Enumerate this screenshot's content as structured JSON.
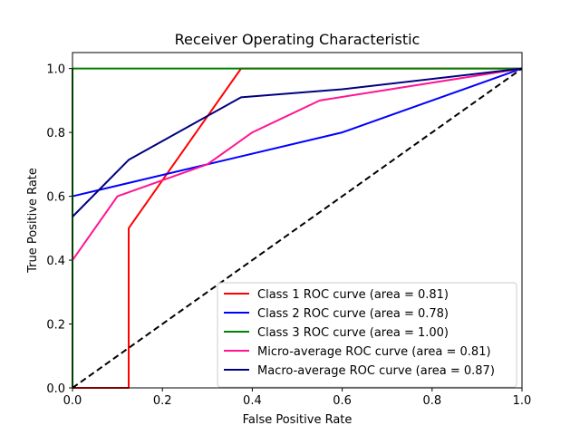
{
  "chart_data": {
    "type": "line",
    "title": "Receiver Operating Characteristic",
    "xlabel": "False Positive Rate",
    "ylabel": "True Positive Rate",
    "xlim": [
      0,
      1
    ],
    "ylim": [
      0,
      1.05
    ],
    "x_ticks": [
      "0.0",
      "0.2",
      "0.4",
      "0.6",
      "0.8",
      "1.0"
    ],
    "y_ticks": [
      "0.0",
      "0.2",
      "0.4",
      "0.6",
      "0.8",
      "1.0"
    ],
    "grid": false,
    "legend_position": "lower-right",
    "series": [
      {
        "name": "Class 1 ROC curve (area = 0.81)",
        "color": "#ff0000",
        "points": [
          [
            0,
            0
          ],
          [
            0.125,
            0
          ],
          [
            0.125,
            0.5
          ],
          [
            0.375,
            1.0
          ],
          [
            1.0,
            1.0
          ]
        ]
      },
      {
        "name": "Class 2 ROC curve (area = 0.78)",
        "color": "#0000ff",
        "points": [
          [
            0,
            0.6
          ],
          [
            0.6,
            0.8
          ],
          [
            1.0,
            1.0
          ]
        ]
      },
      {
        "name": "Class 3 ROC curve (area = 1.00)",
        "color": "#008000",
        "points": [
          [
            0,
            0
          ],
          [
            0,
            1.0
          ],
          [
            1.0,
            1.0
          ]
        ]
      },
      {
        "name": "Micro-average ROC curve (area = 0.81)",
        "color": "#ff1493",
        "points": [
          [
            0,
            0.4
          ],
          [
            0.1,
            0.6
          ],
          [
            0.3,
            0.7
          ],
          [
            0.4,
            0.8
          ],
          [
            0.55,
            0.9
          ],
          [
            1.0,
            1.0
          ]
        ]
      },
      {
        "name": "Macro-average ROC curve (area = 0.87)",
        "color": "#000080",
        "points": [
          [
            0,
            0.536
          ],
          [
            0.125,
            0.714
          ],
          [
            0.375,
            0.91
          ],
          [
            0.6,
            0.935
          ],
          [
            1.0,
            1.0
          ]
        ]
      }
    ],
    "reference_line": {
      "style": "dashed",
      "color": "#000000",
      "points": [
        [
          0,
          0
        ],
        [
          1,
          1
        ]
      ]
    }
  }
}
